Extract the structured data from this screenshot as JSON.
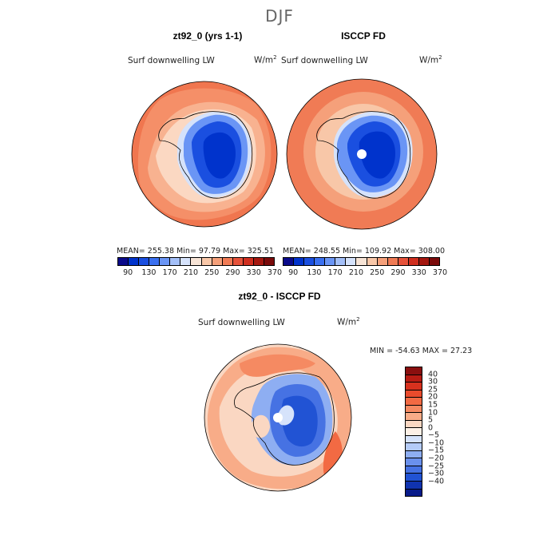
{
  "figure": {
    "season": "DJF",
    "panel_left": {
      "title": "zt92_0 (yrs 1-1)",
      "variable": "Surf downwelling LW",
      "units_base": "W/m",
      "units_exp": "2",
      "stats": "MEAN= 255.38  Min=  97.79  Max= 325.51"
    },
    "panel_right": {
      "title": "ISCCP FD",
      "variable": "Surf downwelling LW",
      "units_base": "W/m",
      "units_exp": "2",
      "stats": "MEAN= 248.55  Min= 109.92  Max= 308.00"
    },
    "panel_diff": {
      "title": "zt92_0 - ISCCP FD",
      "variable": "Surf downwelling LW",
      "units_base": "W/m",
      "units_exp": "2",
      "stats": "MIN = -54.63 MAX =  27.23"
    }
  },
  "chart_data": [
    {
      "type": "heatmap",
      "title": "zt92_0 (yrs 1-1)",
      "variable": "Surf downwelling LW",
      "units": "W/m^2",
      "season": "DJF",
      "mean": 255.38,
      "min": 97.79,
      "max": 325.51,
      "colorbar_levels": [
        90,
        130,
        170,
        210,
        250,
        290,
        330,
        370
      ]
    },
    {
      "type": "heatmap",
      "title": "ISCCP FD",
      "variable": "Surf downwelling LW",
      "units": "W/m^2",
      "season": "DJF",
      "mean": 248.55,
      "min": 109.92,
      "max": 308.0,
      "colorbar_levels": [
        90,
        130,
        170,
        210,
        250,
        290,
        330,
        370
      ]
    },
    {
      "type": "heatmap",
      "title": "zt92_0 - ISCCP FD",
      "variable": "Surf downwelling LW",
      "units": "W/m^2",
      "season": "DJF",
      "min": -54.63,
      "max": 27.23,
      "colorbar_levels": [
        40,
        30,
        25,
        20,
        15,
        10,
        5,
        0,
        -5,
        -10,
        -15,
        -20,
        -25,
        -30,
        -40
      ]
    }
  ],
  "colorbars": {
    "abs_tick_labels": [
      "90",
      "130",
      "170",
      "210",
      "250",
      "290",
      "330",
      "370"
    ],
    "abs_colors": [
      "#0a0a8a",
      "#0033cc",
      "#1a4fe0",
      "#3a70f0",
      "#6a95f5",
      "#a3bff8",
      "#d5e2fb",
      "#f7e4d6",
      "#f8c7a8",
      "#f5a07a",
      "#f07b55",
      "#e6523a",
      "#cf2e1f",
      "#a51810",
      "#7a0a0a"
    ],
    "diff_tick_labels": [
      "40",
      "30",
      "25",
      "20",
      "15",
      "10",
      "5",
      "0",
      "−5",
      "−10",
      "−15",
      "−20",
      "−25",
      "−30",
      "−40"
    ],
    "diff_colors": [
      "#8a0f0f",
      "#b81c14",
      "#d8311e",
      "#ea4b2c",
      "#f26a43",
      "#f58a62",
      "#f8ac88",
      "#fad7c2",
      "#fdf0e6",
      "#d6e3fb",
      "#b4cbf7",
      "#8eaef2",
      "#6a90ec",
      "#4672e3",
      "#2153d4",
      "#1033b0",
      "#081b8a"
    ]
  }
}
